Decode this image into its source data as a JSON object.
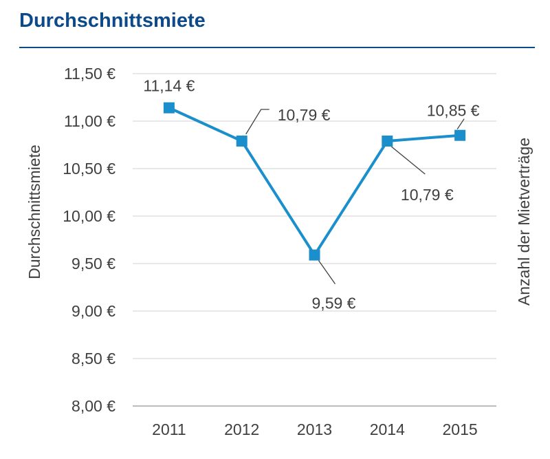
{
  "header": {
    "title": "Durchschnittsmiete"
  },
  "colors": {
    "title": "#0d4a8a",
    "series": "#1a8fcc",
    "grid": "#d9d9d9",
    "text": "#404040"
  },
  "chart_data": {
    "type": "line",
    "title": "Durchschnittsmiete",
    "x": [
      "2011",
      "2012",
      "2013",
      "2014",
      "2015"
    ],
    "series": [
      {
        "values": [
          11.14,
          10.79,
          9.59,
          10.79,
          10.85
        ],
        "data_labels": [
          "11,14 €",
          "10,79 €",
          "9,59 €",
          "10,79 €",
          "10,85 €"
        ]
      }
    ],
    "ylabel": "Durchschnittsmiete",
    "ylabel_right": "Anzahl der Mietverträge",
    "ylim": [
      8.0,
      11.5
    ],
    "yticks": [
      8.0,
      8.5,
      9.0,
      9.5,
      10.0,
      10.5,
      11.0,
      11.5
    ],
    "ytick_labels": [
      "8,00 €",
      "8,50 €",
      "9,00 €",
      "9,50 €",
      "10,00 €",
      "10,50 €",
      "11,00 €",
      "11,50 €"
    ],
    "grid": true,
    "legend": "none",
    "marker": "square"
  }
}
